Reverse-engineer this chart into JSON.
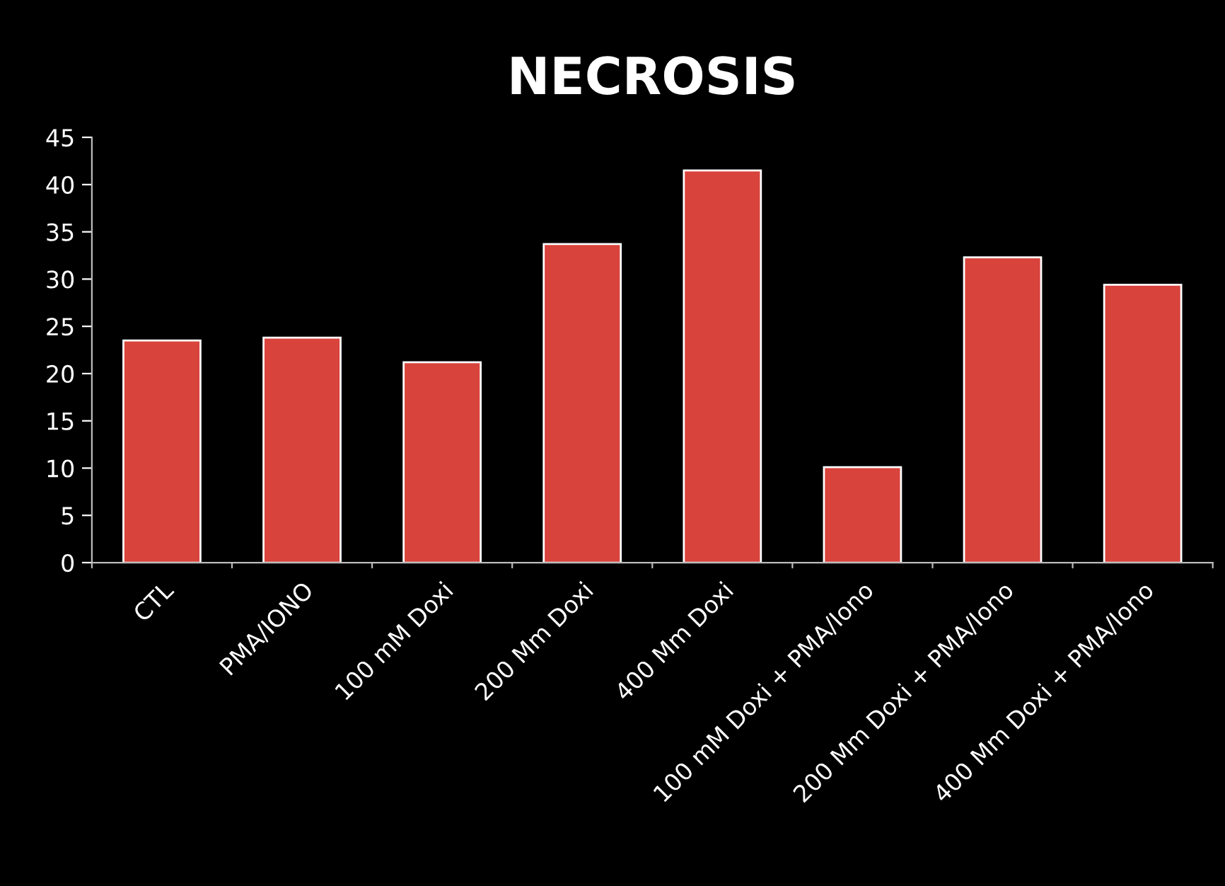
{
  "chart_data": {
    "type": "bar",
    "title": "NECROSIS",
    "categories": [
      "CTL",
      "PMA/IONO",
      "100 mM Doxi",
      "200 Mm Doxi",
      "400 Mm Doxi",
      "100 mM Doxi + PMA/Iono",
      "200 Mm Doxi + PMA/Iono",
      "400 Mm Doxi + PMA/Iono"
    ],
    "values": [
      23.5,
      23.8,
      21.2,
      33.7,
      41.5,
      10.1,
      32.3,
      29.4
    ],
    "color": "#d8433c",
    "ylim": [
      0,
      45
    ],
    "yticks": [
      0,
      5,
      10,
      15,
      20,
      25,
      30,
      35,
      40,
      45
    ],
    "grid": false,
    "legend": false
  }
}
